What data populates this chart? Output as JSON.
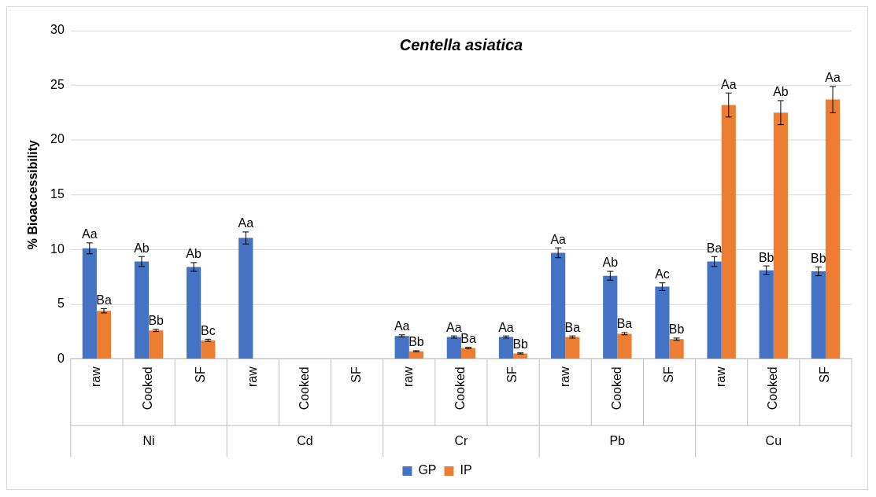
{
  "chart_data": {
    "type": "bar",
    "title": "Centella asiatica",
    "ylabel": "% Bioaccessibility",
    "categories": [
      "raw",
      "Cooked",
      "SF",
      "raw",
      "Cooked",
      "SF",
      "raw",
      "Cooked",
      "SF",
      "raw",
      "Cooked",
      "SF",
      "raw",
      "Cooked",
      "SF"
    ],
    "annotations": [
      "Ni",
      "Cd",
      "Cr",
      "Pb",
      "Cu"
    ],
    "series": [
      {
        "name": "GP",
        "color": "#4472c4",
        "values": [
          10.1,
          8.9,
          8.4,
          11.05,
          0,
          0,
          2.1,
          2.0,
          2.0,
          9.7,
          7.6,
          6.6,
          8.9,
          8.1,
          8.0
        ],
        "errors": [
          0.5,
          0.45,
          0.4,
          0.55,
          null,
          null,
          0.1,
          0.1,
          0.1,
          0.45,
          0.4,
          0.35,
          0.45,
          0.4,
          0.4
        ],
        "value_labels": [
          "Aa",
          "Ab",
          "Ab",
          "Aa",
          null,
          null,
          "Aa",
          "Aa",
          "Aa",
          "Aa",
          "Ab",
          "Ac",
          "Ba",
          "Bb",
          "Bb"
        ]
      },
      {
        "name": "IP",
        "color": "#ed7d31",
        "values": [
          4.4,
          2.6,
          1.7,
          0,
          0,
          0,
          0.7,
          1.0,
          0.5,
          2.0,
          2.3,
          1.8,
          23.2,
          22.5,
          23.7
        ],
        "errors": [
          0.2,
          0.1,
          0.1,
          null,
          null,
          null,
          0.05,
          0.05,
          0.05,
          0.1,
          0.1,
          0.1,
          1.1,
          1.1,
          1.2
        ],
        "value_labels": [
          "Ba",
          "Bb",
          "Bc",
          null,
          null,
          null,
          "Bb",
          "Ba",
          "Bb",
          "Ba",
          "Ba",
          "Bb",
          "Aa",
          "Ab",
          "Aa"
        ]
      }
    ],
    "ylim": [
      0,
      30
    ],
    "yticks": [
      0,
      5,
      10,
      15,
      20,
      25,
      30
    ],
    "grid": "y",
    "legend": "bottom"
  }
}
